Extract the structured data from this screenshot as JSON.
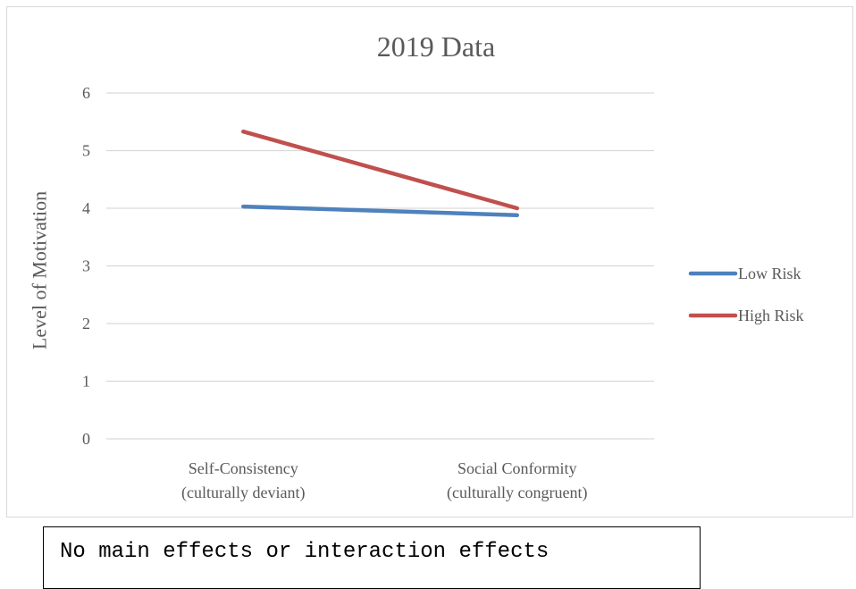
{
  "chart_data": {
    "type": "line",
    "title": "2019 Data",
    "xlabel": "",
    "ylabel": "Level of Motivation",
    "ylim": [
      0,
      6
    ],
    "yticks": [
      0,
      1,
      2,
      3,
      4,
      5,
      6
    ],
    "categories": [
      [
        "Self-Consistency",
        "(culturally deviant)"
      ],
      [
        "Social Conformity",
        "(culturally congruent)"
      ]
    ],
    "series": [
      {
        "name": "Low Risk",
        "values": [
          4.03,
          3.88
        ],
        "color": "#4f81bd"
      },
      {
        "name": "High Risk",
        "values": [
          5.33,
          4.0
        ],
        "color": "#c0504d"
      }
    ],
    "grid": true,
    "legend_position": "right"
  },
  "note": "No main effects or interaction effects"
}
